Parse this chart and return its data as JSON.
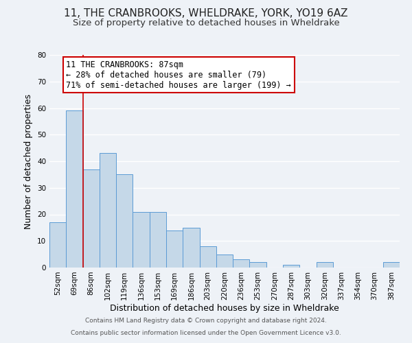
{
  "title": "11, THE CRANBROOKS, WHELDRAKE, YORK, YO19 6AZ",
  "subtitle": "Size of property relative to detached houses in Wheldrake",
  "xlabel": "Distribution of detached houses by size in Wheldrake",
  "ylabel": "Number of detached properties",
  "footnote1": "Contains HM Land Registry data © Crown copyright and database right 2024.",
  "footnote2": "Contains public sector information licensed under the Open Government Licence v3.0.",
  "annotation_title": "11 THE CRANBROOKS: 87sqm",
  "annotation_line2": "← 28% of detached houses are smaller (79)",
  "annotation_line3": "71% of semi-detached houses are larger (199) →",
  "bar_labels": [
    "52sqm",
    "69sqm",
    "86sqm",
    "102sqm",
    "119sqm",
    "136sqm",
    "153sqm",
    "169sqm",
    "186sqm",
    "203sqm",
    "220sqm",
    "236sqm",
    "253sqm",
    "270sqm",
    "287sqm",
    "303sqm",
    "320sqm",
    "337sqm",
    "354sqm",
    "370sqm",
    "387sqm"
  ],
  "bar_values": [
    17,
    59,
    37,
    43,
    35,
    21,
    21,
    14,
    15,
    8,
    5,
    3,
    2,
    0,
    1,
    0,
    2,
    0,
    0,
    0,
    2
  ],
  "bar_color": "#c5d8e8",
  "bar_edge_color": "#5b9bd5",
  "vline_color": "#cc0000",
  "annotation_box_edge": "#cc0000",
  "annotation_box_face": "#ffffff",
  "ylim": [
    0,
    80
  ],
  "yticks": [
    0,
    10,
    20,
    30,
    40,
    50,
    60,
    70,
    80
  ],
  "background_color": "#eef2f7",
  "grid_color": "#ffffff",
  "title_fontsize": 11,
  "subtitle_fontsize": 9.5,
  "axis_label_fontsize": 9,
  "tick_fontsize": 7.5,
  "annotation_fontsize": 8.5,
  "footnote_fontsize": 6.5
}
